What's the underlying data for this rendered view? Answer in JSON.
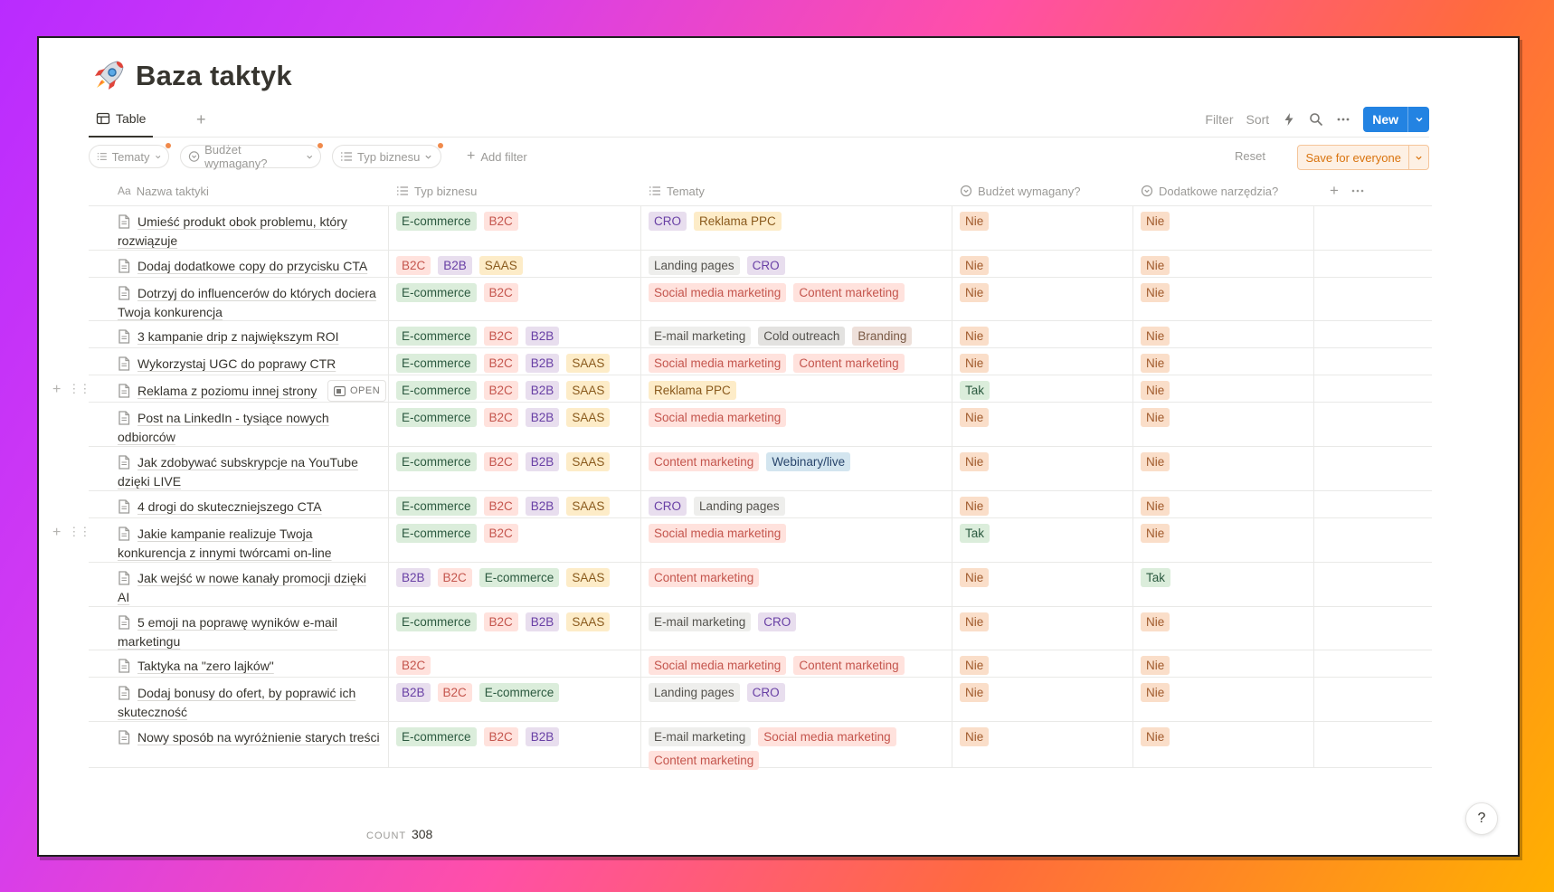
{
  "page": {
    "title": "Baza taktyk",
    "icon": "rocket-icon"
  },
  "viewbar": {
    "tab_label": "Table",
    "filter": "Filter",
    "sort": "Sort",
    "new": "New"
  },
  "filterbar": {
    "chips": [
      "Tematy",
      "Budżet wymagany?",
      "Typ biznesu"
    ],
    "add_filter": "Add filter",
    "reset": "Reset",
    "save": "Save for everyone"
  },
  "columns": {
    "name": "Nazwa taktyki",
    "name_icon_text": "Aa",
    "biz": "Typ biznesu",
    "tem": "Tematy",
    "bud": "Budżet wymagany?",
    "dod": "Dodatkowe narzędzia?"
  },
  "open_label": "OPEN",
  "count": {
    "label": "COUNT",
    "value": "308"
  },
  "help": "?",
  "tag_colors": {
    "E-commerce": [
      "#dbeddb",
      "#2b593f"
    ],
    "B2C": [
      "#ffe2dd",
      "#c4554d"
    ],
    "B2B": [
      "#e8deee",
      "#6940a5"
    ],
    "SAAS": [
      "#fdecc8",
      "#8a5a1d"
    ],
    "CRO": [
      "#e8deee",
      "#6940a5"
    ],
    "Reklama PPC": [
      "#fdecc8",
      "#8a5a1d"
    ],
    "Landing pages": [
      "#eeeeec",
      "#55534e"
    ],
    "Social media marketing": [
      "#ffe2dd",
      "#c4554d"
    ],
    "Content marketing": [
      "#ffe2dd",
      "#c4554d"
    ],
    "E-mail marketing": [
      "#eeeeec",
      "#55534e"
    ],
    "Cold outreach": [
      "#e3e2e0",
      "#55534e"
    ],
    "Branding": [
      "#eee0da",
      "#7a5a45"
    ],
    "Webinary/live": [
      "#d3e5ef",
      "#28456c"
    ],
    "Nie": [
      "#fadec9",
      "#a05a2c"
    ],
    "Tak": [
      "#dbeddb",
      "#2b593f"
    ]
  },
  "rows": [
    {
      "name": "Umieść produkt obok problemu, który rozwiązuje",
      "biz": [
        "E-commerce",
        "B2C"
      ],
      "tem": [
        "CRO",
        "Reklama PPC"
      ],
      "bud": "Nie",
      "dod": "Nie"
    },
    {
      "name": "Dodaj dodatkowe copy do przycisku CTA",
      "biz": [
        "B2C",
        "B2B",
        "SAAS"
      ],
      "tem": [
        "Landing pages",
        "CRO"
      ],
      "bud": "Nie",
      "dod": "Nie"
    },
    {
      "name": "Dotrzyj do influencerów do których dociera Twoja konkurencja",
      "biz": [
        "E-commerce",
        "B2C"
      ],
      "tem": [
        "Social media marketing",
        "Content marketing"
      ],
      "bud": "Nie",
      "dod": "Nie"
    },
    {
      "name": "3 kampanie drip z największym ROI",
      "biz": [
        "E-commerce",
        "B2C",
        "B2B"
      ],
      "tem": [
        "E-mail marketing",
        "Cold outreach",
        "Branding"
      ],
      "bud": "Nie",
      "dod": "Nie"
    },
    {
      "name": "Wykorzystaj UGC do poprawy CTR",
      "biz": [
        "E-commerce",
        "B2C",
        "B2B",
        "SAAS"
      ],
      "tem": [
        "Social media marketing",
        "Content marketing"
      ],
      "bud": "Nie",
      "dod": "Nie"
    },
    {
      "name": "Reklama z poziomu innej strony",
      "biz": [
        "E-commerce",
        "B2C",
        "B2B",
        "SAAS"
      ],
      "tem": [
        "Reklama PPC"
      ],
      "bud": "Tak",
      "dod": "Nie",
      "hover": true
    },
    {
      "name": "Post na LinkedIn - tysiące nowych odbiorców",
      "biz": [
        "E-commerce",
        "B2C",
        "B2B",
        "SAAS"
      ],
      "tem": [
        "Social media marketing"
      ],
      "bud": "Nie",
      "dod": "Nie"
    },
    {
      "name": "Jak zdobywać subskrypcje na YouTube dzięki LIVE",
      "biz": [
        "E-commerce",
        "B2C",
        "B2B",
        "SAAS"
      ],
      "tem": [
        "Content marketing",
        "Webinary/live"
      ],
      "bud": "Nie",
      "dod": "Nie"
    },
    {
      "name": "4 drogi do skuteczniejszego CTA",
      "biz": [
        "E-commerce",
        "B2C",
        "B2B",
        "SAAS"
      ],
      "tem": [
        "CRO",
        "Landing pages"
      ],
      "bud": "Nie",
      "dod": "Nie"
    },
    {
      "name": "Jakie kampanie realizuje Twoja konkurencja z innymi twórcami on-line",
      "biz": [
        "E-commerce",
        "B2C"
      ],
      "tem": [
        "Social media marketing"
      ],
      "bud": "Tak",
      "dod": "Nie",
      "ctrl": true
    },
    {
      "name": "Jak wejść w nowe kanały promocji dzięki AI",
      "biz": [
        "B2B",
        "B2C",
        "E-commerce",
        "SAAS"
      ],
      "tem": [
        "Content marketing"
      ],
      "bud": "Nie",
      "dod": "Tak"
    },
    {
      "name": "5 emoji na poprawę wyników e-mail marketingu",
      "biz": [
        "E-commerce",
        "B2C",
        "B2B",
        "SAAS"
      ],
      "tem": [
        "E-mail marketing",
        "CRO"
      ],
      "bud": "Nie",
      "dod": "Nie"
    },
    {
      "name": "Taktyka na \"zero lajków\"",
      "biz": [
        "B2C"
      ],
      "tem": [
        "Social media marketing",
        "Content marketing"
      ],
      "bud": "Nie",
      "dod": "Nie"
    },
    {
      "name": "Dodaj bonusy do ofert, by poprawić ich skuteczność",
      "biz": [
        "B2B",
        "B2C",
        "E-commerce"
      ],
      "tem": [
        "Landing pages",
        "CRO"
      ],
      "bud": "Nie",
      "dod": "Nie"
    },
    {
      "name": "Nowy sposób na wyróżnienie starych treści",
      "biz": [
        "E-commerce",
        "B2C",
        "B2B"
      ],
      "tem": [
        "E-mail marketing",
        "Social media marketing",
        "Content marketing"
      ],
      "bud": "Nie",
      "dod": "Nie"
    }
  ]
}
